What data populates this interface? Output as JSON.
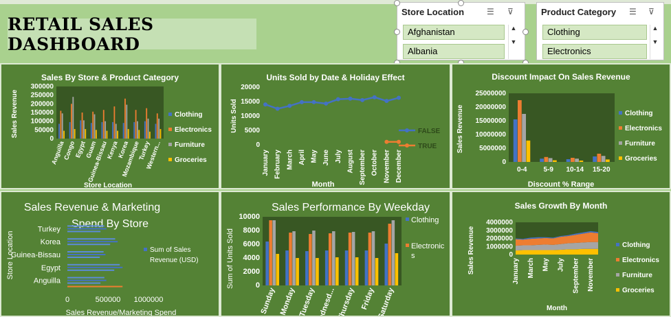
{
  "dashboard_title": "RETAIL SALES DASHBOARD",
  "slicers": [
    {
      "title": "Store Location",
      "items": [
        "Afghanistan",
        "Albania"
      ]
    },
    {
      "title": "Product Category",
      "items": [
        "Clothing",
        "Electronics"
      ]
    }
  ],
  "colors": {
    "Clothing": "#4472c4",
    "Electronics": "#ed7d31",
    "Furniture": "#a5a5a5",
    "Groceries": "#ffc000",
    "panel": "#548235",
    "plot": "#385723"
  },
  "chart_data": [
    {
      "type": "bar",
      "title": "Sales By Store & Product Category",
      "xlabel": "Store Location",
      "ylabel": "Sales Revenue",
      "ylim": [
        0,
        300000
      ],
      "yticks": [
        "300000",
        "250000",
        "200000",
        "150000",
        "100000",
        "50000",
        "0"
      ],
      "categories": [
        "Anguilla",
        "Congo",
        "Egypt",
        "Guam",
        "Guinea-Bissau",
        "Kenya",
        "Korea",
        "Mozambique",
        "Turkey",
        "Western..."
      ],
      "series": [
        {
          "name": "Clothing",
          "values": [
            85000,
            95000,
            105000,
            90000,
            95000,
            95000,
            90000,
            95000,
            100000,
            85000
          ]
        },
        {
          "name": "Electronics",
          "values": [
            160000,
            200000,
            150000,
            155000,
            165000,
            185000,
            230000,
            165000,
            175000,
            145000
          ]
        },
        {
          "name": "Furniture",
          "values": [
            145000,
            240000,
            105000,
            140000,
            100000,
            85000,
            195000,
            100000,
            115000,
            115000
          ]
        },
        {
          "name": "Groceries",
          "values": [
            45000,
            55000,
            55000,
            50000,
            45000,
            45000,
            55000,
            50000,
            40000,
            55000
          ]
        }
      ],
      "legend": "right"
    },
    {
      "type": "line",
      "title": "Units Sold by Date & Holiday Effect",
      "xlabel": "Month",
      "ylabel": "Units Sold",
      "ylim": [
        0,
        20000
      ],
      "yticks": [
        "20000",
        "15000",
        "10000",
        "5000",
        "0"
      ],
      "categories": [
        "January",
        "February",
        "March",
        "April",
        "May",
        "June",
        "July",
        "August",
        "September",
        "October",
        "November",
        "December"
      ],
      "series": [
        {
          "name": "FALSE",
          "values": [
            14000,
            12500,
            13500,
            14800,
            14800,
            14300,
            15800,
            16000,
            15500,
            16500,
            15200,
            16300
          ]
        },
        {
          "name": "TRUE",
          "values": [
            null,
            null,
            null,
            null,
            null,
            null,
            null,
            null,
            null,
            null,
            1000,
            1000
          ]
        }
      ],
      "legend": "right"
    },
    {
      "type": "bar",
      "title": "Discount Impact On Sales Revenue",
      "xlabel": "Discount % Range",
      "ylabel": "Sales Revenue",
      "ylim": [
        0,
        25000000
      ],
      "yticks": [
        "25000000",
        "20000000",
        "15000000",
        "10000000",
        "5000000",
        "0"
      ],
      "categories": [
        "0-4",
        "5-9",
        "10-14",
        "15-20"
      ],
      "series": [
        {
          "name": "Clothing",
          "values": [
            15500000,
            1200000,
            1000000,
            2000000
          ]
        },
        {
          "name": "Electronics",
          "values": [
            22500000,
            1800000,
            1500000,
            3000000
          ]
        },
        {
          "name": "Furniture",
          "values": [
            17500000,
            1400000,
            1200000,
            2200000
          ]
        },
        {
          "name": "Groceries",
          "values": [
            7800000,
            600000,
            500000,
            900000
          ]
        }
      ],
      "legend": "right"
    },
    {
      "type": "bar",
      "title": "Sales Revenue & Marketing Spend By Store",
      "xlabel": "Sales Revenue/Marketing Spend",
      "ylabel": "Store Location",
      "xlim": [
        0,
        1000000
      ],
      "xticks": [
        "0",
        "500000",
        "1000000"
      ],
      "categories": [
        "Anguilla",
        "Egypt",
        "Guinea-Bissau",
        "Korea",
        "Turkey"
      ],
      "series": [
        {
          "name": "Sum of Sales Revenue (USD)",
          "values": [
            480000,
            680000,
            470000,
            620000,
            480000
          ]
        }
      ],
      "legend": "right"
    },
    {
      "type": "bar",
      "title": "Sales Performance By Weekday",
      "ylabel": "Sum of Units Sold",
      "ylim": [
        0,
        10000
      ],
      "yticks": [
        "10000",
        "8000",
        "6000",
        "4000",
        "2000",
        "0"
      ],
      "categories": [
        "Sunday",
        "Monday",
        "Tuesday",
        "Wednesd...",
        "Thursday",
        "Friday",
        "Saturday"
      ],
      "series": [
        {
          "name": "Clothing",
          "values": [
            6400,
            5100,
            5000,
            5100,
            5100,
            5100,
            6100
          ]
        },
        {
          "name": "Electronics",
          "values": [
            9500,
            7700,
            7500,
            7600,
            7700,
            7700,
            9000
          ]
        },
        {
          "name": "Furniture",
          "values": [
            9500,
            7900,
            8000,
            7900,
            7800,
            7900,
            9500
          ]
        },
        {
          "name": "Groceries",
          "values": [
            4600,
            4000,
            4000,
            4100,
            4100,
            4000,
            4700
          ]
        }
      ],
      "legend": "right"
    },
    {
      "type": "area",
      "title": "Sales Growth By Month",
      "xlabel": "Month",
      "ylabel": "Sales Revenue",
      "ylim": [
        0,
        4000000
      ],
      "yticks": [
        "4000000",
        "3000000",
        "2000000",
        "1000000",
        "0"
      ],
      "categories": [
        "January",
        "February",
        "March",
        "April",
        "May",
        "June",
        "July",
        "August",
        "September",
        "October",
        "November",
        "December"
      ],
      "tick_labels": [
        "January",
        "March",
        "May",
        "July",
        "September",
        "November"
      ],
      "series": [
        {
          "name": "Clothing",
          "values": [
            100000,
            100000,
            150000,
            150000,
            100000,
            100000,
            100000,
            100000,
            150000,
            150000,
            150000,
            150000
          ]
        },
        {
          "name": "Electronics",
          "values": [
            800000,
            700000,
            800000,
            800000,
            800000,
            800000,
            900000,
            900000,
            1000000,
            1100000,
            1200000,
            1100000
          ]
        },
        {
          "name": "Furniture",
          "values": [
            600000,
            600000,
            600000,
            650000,
            700000,
            650000,
            700000,
            750000,
            800000,
            800000,
            850000,
            850000
          ]
        },
        {
          "name": "Groceries",
          "values": [
            500000,
            550000,
            550000,
            550000,
            550000,
            550000,
            600000,
            650000,
            650000,
            700000,
            700000,
            700000
          ]
        }
      ],
      "legend": "right"
    }
  ]
}
